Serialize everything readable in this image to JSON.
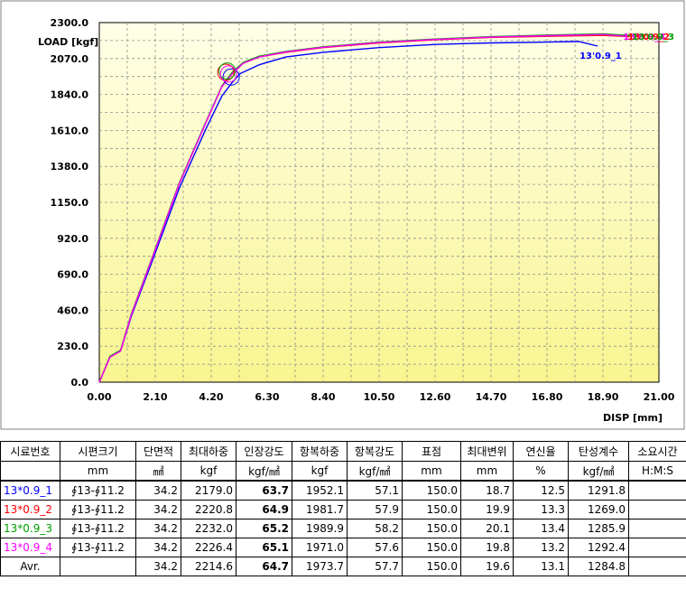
{
  "chart_data": {
    "type": "line",
    "title": "",
    "ylabel": "LOAD [kgf]",
    "xlabel": "DISP [mm]",
    "xlim": [
      0,
      21
    ],
    "ylim": [
      0,
      2300
    ],
    "x_ticks": [
      "0.00",
      "2.10",
      "4.20",
      "6.30",
      "8.40",
      "10.50",
      "12.60",
      "14.70",
      "16.80",
      "18.90",
      "21.00"
    ],
    "y_ticks": [
      "0.0",
      "230.0",
      "460.0",
      "690.0",
      "920.0",
      "1150.0",
      "1380.0",
      "1610.0",
      "1840.0",
      "2070.0",
      "2300.0"
    ],
    "grid": true,
    "background_gradient": [
      "#ffffe8",
      "#f8f590"
    ],
    "series": [
      {
        "name": "13'0.9_1",
        "color": "#0000ff",
        "x": [
          0,
          0.4,
          0.8,
          1.2,
          2.0,
          3.0,
          4.0,
          4.6,
          5.0,
          5.3,
          6.0,
          7.0,
          8.4,
          10.5,
          12.6,
          14.7,
          16.8,
          18.0,
          18.7
        ],
        "y": [
          0,
          160,
          200,
          420,
          780,
          1240,
          1620,
          1830,
          1920,
          1975,
          2030,
          2080,
          2110,
          2140,
          2160,
          2170,
          2175,
          2179,
          2150
        ]
      },
      {
        "name": "13'0.9_2",
        "color": "#ff0000",
        "x": [
          0,
          0.4,
          0.8,
          1.2,
          2.0,
          3.0,
          4.0,
          4.6,
          5.0,
          5.4,
          6.0,
          7.0,
          8.4,
          10.5,
          12.6,
          14.7,
          16.8,
          18.9,
          19.9
        ],
        "y": [
          0,
          160,
          200,
          430,
          800,
          1270,
          1660,
          1890,
          1975,
          2040,
          2080,
          2110,
          2140,
          2170,
          2190,
          2205,
          2212,
          2218,
          2210
        ]
      },
      {
        "name": "13'0.9_3",
        "color": "#00a000",
        "x": [
          0,
          0.4,
          0.8,
          1.2,
          2.0,
          3.0,
          4.0,
          4.6,
          5.0,
          5.4,
          6.0,
          7.0,
          8.4,
          10.5,
          12.6,
          14.7,
          16.8,
          18.9,
          20.1
        ],
        "y": [
          0,
          165,
          205,
          435,
          805,
          1275,
          1665,
          1895,
          1985,
          2045,
          2085,
          2115,
          2145,
          2175,
          2195,
          2210,
          2220,
          2228,
          2215
        ]
      },
      {
        "name": "13'0.9_4",
        "color": "#ff00ff",
        "x": [
          0,
          0.4,
          0.8,
          1.2,
          2.0,
          3.0,
          4.0,
          4.6,
          5.0,
          5.4,
          6.0,
          7.0,
          8.4,
          10.5,
          12.6,
          14.7,
          16.8,
          18.9,
          19.8
        ],
        "y": [
          0,
          160,
          200,
          430,
          800,
          1270,
          1660,
          1890,
          1975,
          2040,
          2080,
          2112,
          2142,
          2172,
          2192,
          2207,
          2216,
          2224,
          2212
        ]
      }
    ],
    "yield_markers": [
      {
        "x": 4.95,
        "y": 1952,
        "color": "#0000ff"
      },
      {
        "x": 4.75,
        "y": 1982,
        "color": "#ff0000"
      },
      {
        "x": 4.8,
        "y": 1990,
        "color": "#00a000"
      },
      {
        "x": 4.85,
        "y": 1971,
        "color": "#ff00ff"
      }
    ],
    "end_labels": [
      {
        "series": 0,
        "text": "13'0.9_1",
        "x": 18.7,
        "y": 2150
      },
      {
        "series": 3,
        "text": "13'0.9_4",
        "x": 20.2,
        "y": 2212
      },
      {
        "series": 1,
        "text": "13'0.9_2",
        "x": 20.3,
        "y": 2212
      },
      {
        "series": 2,
        "text": "13'0.9_3",
        "x": 20.4,
        "y": 2212
      }
    ]
  },
  "table": {
    "headers": [
      "시료번호",
      "시편크기",
      "단면적",
      "최대하중",
      "인장강도",
      "항복하중",
      "항복강도",
      "표점",
      "최대변위",
      "연신율",
      "탄성계수",
      "소요시간"
    ],
    "units": [
      "",
      "mm",
      "㎟",
      "kgf",
      "kgf/㎟",
      "kgf",
      "kgf/㎟",
      "mm",
      "mm",
      "%",
      "kgf/㎟",
      "H:M:S"
    ],
    "rows": [
      {
        "id": "13*0.9_1",
        "color": "#0000ff",
        "size": "∮13-∮11.2",
        "area": "34.2",
        "max_load": "2179.0",
        "tensile": "63.7",
        "yield_load": "1952.1",
        "yield_strength": "57.1",
        "gauge": "150.0",
        "max_disp": "18.7",
        "elong": "12.5",
        "modulus": "1291.8",
        "time": ""
      },
      {
        "id": "13*0.9_2",
        "color": "#ff0000",
        "size": "∮13-∮11.2",
        "area": "34.2",
        "max_load": "2220.8",
        "tensile": "64.9",
        "yield_load": "1981.7",
        "yield_strength": "57.9",
        "gauge": "150.0",
        "max_disp": "19.9",
        "elong": "13.3",
        "modulus": "1269.0",
        "time": ""
      },
      {
        "id": "13*0.9_3",
        "color": "#00a000",
        "size": "∮13-∮11.2",
        "area": "34.2",
        "max_load": "2232.0",
        "tensile": "65.2",
        "yield_load": "1989.9",
        "yield_strength": "58.2",
        "gauge": "150.0",
        "max_disp": "20.1",
        "elong": "13.4",
        "modulus": "1285.9",
        "time": ""
      },
      {
        "id": "13*0.9_4",
        "color": "#ff00ff",
        "size": "∮13-∮11.2",
        "area": "34.2",
        "max_load": "2226.4",
        "tensile": "65.1",
        "yield_load": "1971.0",
        "yield_strength": "57.6",
        "gauge": "150.0",
        "max_disp": "19.8",
        "elong": "13.2",
        "modulus": "1292.4",
        "time": ""
      },
      {
        "id": "Avr.",
        "color": "#000000",
        "size": "",
        "area": "34.2",
        "max_load": "2214.6",
        "tensile": "64.7",
        "yield_load": "1973.7",
        "yield_strength": "57.7",
        "gauge": "150.0",
        "max_disp": "19.6",
        "elong": "13.1",
        "modulus": "1284.8",
        "time": ""
      }
    ]
  }
}
